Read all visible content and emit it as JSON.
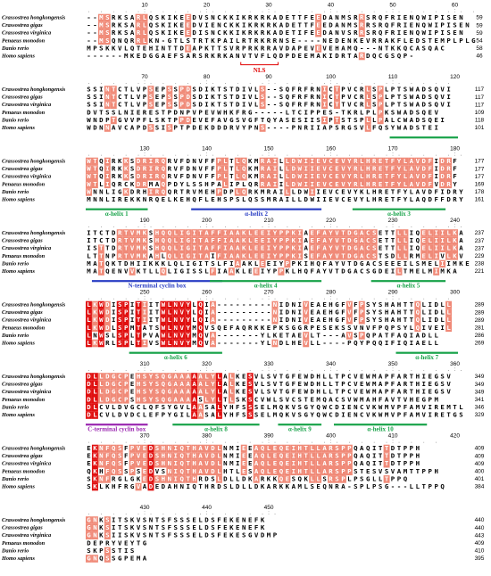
{
  "species": [
    "Crassostrea hongkongensis",
    "Crassostrea gigas",
    "Crassostrea virginica",
    "Penaeus monodon",
    "Danio rerio",
    "Homo sapiens"
  ],
  "blocks": [
    {
      "ruler": [
        10,
        20,
        30,
        40,
        50,
        60
      ],
      "rows": [
        {
          "sequence": "--MSRKSARLQSKIKEEDVSNCKKIKRKRKADETTFEEDANMSRRSRQFRIENQWIPISEN",
          "end": 59
        },
        {
          "sequence": "--MSRKSARLQSKIKEEDVIENCKKIKRKRKADETTFEEDANMSRRSRQFRIENQWIPISEN",
          "end": 59
        },
        {
          "sequence": "--MSRKSARLQSKIKEEDISNCKKIKRKRKADETIFEEDANVSRRSRQFRIENQWIPISEN",
          "end": 59
        },
        {
          "sequence": "--MSQNQRRLKN-GTLSTRTKPAILRTRKRRNSE----NEDENKEVRRAKFLEDSTEMPLPLG",
          "end": 54
        },
        {
          "sequence": "MPSKKVLQTEHINTTDEAPKTTSVRPRKRRAVDAPEVEVEHAMQ---NTKKQCASQAC",
          "end": 58
        },
        {
          "sequence": "------MKEDGGAEFSARSRKRKANVTVFLQDPDEEMAKIDRTARDQCGSQP-",
          "end": 46
        }
      ],
      "annotations": [
        {
          "label": "NLS"
        }
      ]
    },
    {
      "ruler": [
        70,
        80,
        90,
        100,
        110,
        120
      ],
      "rows": [
        {
          "sequence": "SSINTCTLVPSEPSSPDSDIKTSTDIVLS--SQFRFRNICTPVCRLSPLPTSWADSQVI",
          "end": 117
        },
        {
          "sequence": "SSINTCTLVPSEPSSPDSDIKTSTDIVLS--SQFRFRNICTPVCRLSPLPTSWADSQVI",
          "end": 117
        },
        {
          "sequence": "SSINTCTLVPSEPSSPDSDIKTSTDIVLS--SQFRFRNICTTVCRLSPLPTSWADSQVI",
          "end": 117
        },
        {
          "sequence": "DVTSSLNIERESTPDNPVPEVWHKFRG-----LTCIPPES-TKRLPLPKSWADSQEV",
          "end": 109
        },
        {
          "sequence": "WNDPTGVVPFLSKTPPDEVEFAVGSVGFTQYASESIISIPTSTSPLLPALCWADSQEI",
          "end": 118
        },
        {
          "sequence": "WDNNAVCAPDSSISPTPDEKDDDRVYPNS----PNRIIAPSRGSVLFQSYWADSTEI",
          "end": 101
        }
      ],
      "annotations": []
    },
    {
      "ruler": [
        130,
        140,
        150,
        160,
        170,
        180
      ],
      "rows": [
        {
          "sequence": "WTQIRKKSDRIRQRVFDNVFFPLTLQKMRAILLDWIIEVCEVYRLHRETFYLAVDFIDRF",
          "end": 177
        },
        {
          "sequence": "WTQIRKKSDRIRQRVFDNVFFPLTLQKMRAILLDWIIEVCEVYRLHRETFYLAVDFIDRF",
          "end": 177
        },
        {
          "sequence": "WTQIRKKSDRIRQRVFDNVFFPLTLQKMRAILLDWIIEVCEVYRLHRETFYLAVDFIDRF",
          "end": 177
        },
        {
          "sequence": "WTLIQRCKDRMAQPDYLSSHPALIPLQRRAIILDWIIEVCEVYRLHRETFYLAVDFVDRY",
          "end": 169
        },
        {
          "sequence": "WNNLIGKDRHIRQQRTRVMEHPDPLQRKMRAILLDWIIEVCEVYKLHRETFYLAVDFIDRY",
          "end": 178
        },
        {
          "sequence": "MNNLIREKKNRQELKEHQFLEHSPSLQSSMRAILLDWIIEVCEVYLHRETFYLAQDFFDRY",
          "end": 161
        }
      ],
      "annotations": [
        {
          "label": "α-helix 1"
        },
        {
          "label": "α-helix 2"
        },
        {
          "label": "α-helix 3"
        }
      ]
    },
    {
      "ruler": [
        190,
        200,
        210,
        220,
        230,
        240
      ],
      "rows": [
        {
          "sequence": "ITCTDRTVMKSHQQLIGITAFFIAAKLEEIYPPKIAEFAYVTDGACSETTLLIQELIILKA",
          "end": 237
        },
        {
          "sequence": "ITCTDRTVMKSHQQLIGITAFFIAAKLEEIYPPKIAEFAYVTDGACSETTLLIQELIILKA",
          "end": 237
        },
        {
          "sequence": "ISTTDRTVMKSHQQLIGITAFFIAAKLEEIYPPKIAEFAYVTDGACSETTLLIQELIILKA",
          "end": 237
        },
        {
          "sequence": "LTTNPRTVMKAHLQLIGITAIFIAAKLEEIYPPKISEFAYVTDGACSTSDLLRMELIVLKV",
          "end": 229
        },
        {
          "sequence": "MATQKTDHIIKKKLQLIGITSLFIAAKLEEIYPPKIHQFAYVTDGACSEEEILSMELIIMKE",
          "end": 238
        },
        {
          "sequence": "MATQENVVKTLLQLIGISSLFIAAKLEEIYPPKLHQFAYVTDGACSGDEILTMELMIMKA",
          "end": 221
        }
      ],
      "annotations": [
        {
          "label": "N-terminal cyclin box"
        },
        {
          "label": "α-helix 4"
        },
        {
          "label": "α-helix 5"
        }
      ]
    },
    {
      "ruler": [
        250,
        260,
        270,
        280,
        290,
        300
      ],
      "rows": [
        {
          "sequence": "LKWDISPITIITWLNVYLQIA---------NIDNIVEAEHGFVFPSYSHAHTTQLIDLL",
          "end": 289
        },
        {
          "sequence": "LKWDISPITIITWLNVYLQIA---------NIDNIVEAEHGFVFPSYSHAHTTQLIDLL",
          "end": 289
        },
        {
          "sequence": "LKWDISPITIITWLNVYLQIA---------NIDNIVEAEHGFVFPSYSHAHTTQLIDLL",
          "end": 289
        },
        {
          "sequence": "LKWDLSPMTATSWLNVYMQVSQEFAQRKKEPKSGGRPESEKSSVNVFPQPSYLQIVEIL",
          "end": 281
        },
        {
          "sequence": "LNWSLSPLTPVAWLNVYMQVA-------YLKETAEVLT---AVSPQPATFAQIADLL",
          "end": 286
        },
        {
          "sequence": "LKWRLSPLTIVSWLNVYMQVA-------YLNDLHEVLL----PQYPQQIFIQIAELL",
          "end": 269
        }
      ],
      "annotations": [
        {
          "label": "α-helix 6"
        },
        {
          "label": "α-helix 7"
        }
      ]
    },
    {
      "ruler": [
        310,
        320,
        330,
        340,
        350,
        360
      ],
      "rows": [
        {
          "sequence": "DLLDGCPEHSYSQGAAAAALYLALKESVLSVTGFEWDHLLTPCVEWMAPFARTHIEGSV",
          "end": 349
        },
        {
          "sequence": "DLLDGCPEHSYSQGAAAAALYLALKESVLSVTGFEWDHLLTPCVEWMAPFARTHIEGSV",
          "end": 349
        },
        {
          "sequence": "DLLDGCPEHSYSQGAAAAALYLALKESVLSVTGFEWDHLLTPCVEWMAPFARTHIEGSV",
          "end": 349
        },
        {
          "sequence": "DLLDGCPSHSYSQGAAAASLYLTLSKSCVWLSVCSTEMQACSVWMAHFAVTVHEGPM",
          "end": 341
        },
        {
          "sequence": "DLCVLDVGCLQFSYGVLAASALYHFSSSELMQKVSGYQWCDIENCVKWMVPFAMVIREMTL",
          "end": 346
        },
        {
          "sequence": "DLCVLDVDCLEFPYGILAASALYHFSSSELMQKVSGYQWCDIENCVKWMVPFAMVIRETGS",
          "end": 329
        }
      ],
      "annotations": [
        {
          "label": "C-terminal cyclin box"
        },
        {
          "label": "α-helix 8"
        },
        {
          "label": "α-helix 9"
        },
        {
          "label": "α-helix 10"
        }
      ]
    },
    {
      "ruler": [
        370,
        380,
        390,
        400,
        410,
        420
      ],
      "rows": [
        {
          "sequence": "EKNFQSFPVEDSHNIQTHAVDLNMIEEAQLEQEIHTLLARSPPQAQITTDTPPH",
          "end": 409
        },
        {
          "sequence": "EKNFQSFPVEDSHNIQTHAVDLNMIEEAQLEQEIHTLLARSPPQAQITTDTPPH",
          "end": 409
        },
        {
          "sequence": "EKNFQSFPVEDSHNIQTHAVDLNMIEEAQLEQEIHTLLARSPPQAQITTDTPPH",
          "end": 409
        },
        {
          "sequence": "QKHFQSSPSEDVSNIQTHAVDLHTLESAQLEQEIHTLLARSPPSTESVSVAMTTPPH",
          "end": 400
        },
        {
          "sequence": "SKNFRGLGKEDSHNIQTHRDSLDLLDKARKKQESQKLLSRSPLPSGLLTPPQ",
          "end": 401
        },
        {
          "sequence": "SKLKHFRGVADEDAHNIQTHRDSLDLLDKARKKAMLSEQNRA-SPLPSG---LLTPPQ",
          "end": 384
        }
      ],
      "annotations": []
    },
    {
      "ruler": [
        430,
        440,
        450
      ],
      "rows": [
        {
          "sequence": "GNKSITSKVSNTSFSSSELDSFEKENEFK",
          "end": 440
        },
        {
          "sequence": "GNKSITSKVSNTSFSSSELDSFEKENEFK",
          "end": 440
        },
        {
          "sequence": "GNKSIISKVSNTSFSSSELDSFEKESGVDMP",
          "end": 443
        },
        {
          "sequence": "DEPRYVEYTG",
          "end": 409
        },
        {
          "sequence": "SKPSSTIS",
          "end": 410
        },
        {
          "sequence": "GNQSSGPEMA",
          "end": 395
        }
      ],
      "annotations": []
    }
  ]
}
